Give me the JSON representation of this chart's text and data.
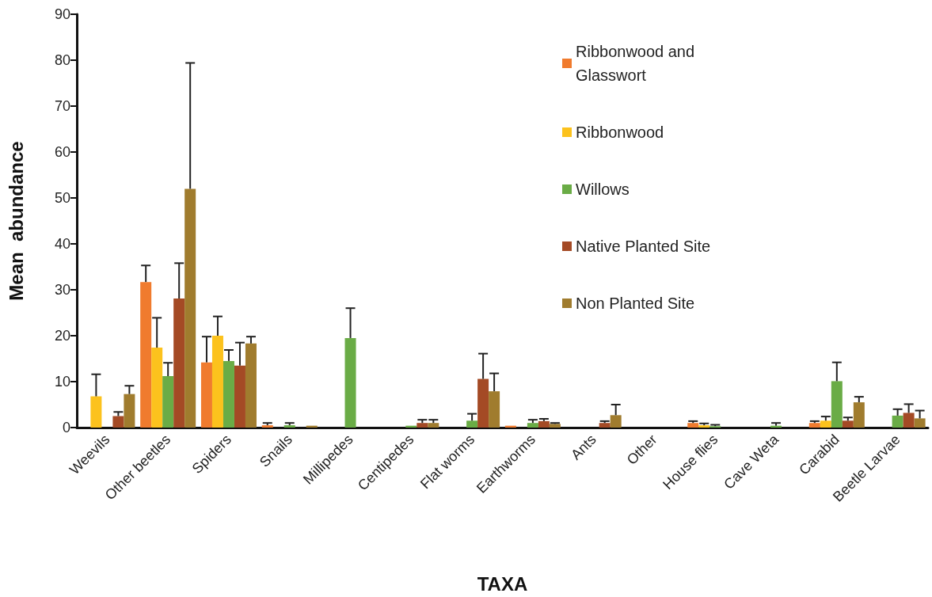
{
  "chart_data": {
    "type": "bar",
    "xlabel": "TAXA",
    "ylabel": "Mean  abundance",
    "categories": [
      "Weevils",
      "Other beetles",
      "Spiders",
      "Snails",
      "Millipedes",
      "Centipedes",
      "Flat worms",
      "Earthworms",
      "Ants",
      "Other",
      "House flies",
      "Cave Weta",
      "Carabid",
      "Beetle Larvae"
    ],
    "series": [
      {
        "name": "Ribbonwood and Glasswort",
        "color": "#f07b2e",
        "values": [
          0,
          31.7,
          14.2,
          0.5,
          0,
          0,
          0,
          0.4,
          0,
          0,
          1.0,
          0,
          1.0,
          0
        ],
        "errors": [
          null,
          [
            31.7,
            35.3
          ],
          [
            14.2,
            19.8
          ],
          [
            0.5,
            1.0
          ],
          null,
          null,
          null,
          null,
          null,
          null,
          [
            1.0,
            1.4
          ],
          null,
          [
            1.0,
            1.4
          ],
          null
        ]
      },
      {
        "name": "Ribbonwood",
        "color": "#fcc21d",
        "values": [
          6.8,
          17.4,
          20.0,
          0,
          0,
          0,
          0,
          0,
          0,
          0,
          0.5,
          0,
          1.5,
          0
        ],
        "errors": [
          [
            6.8,
            11.6
          ],
          [
            17.4,
            23.9
          ],
          [
            20.0,
            24.2
          ],
          null,
          null,
          null,
          null,
          null,
          null,
          null,
          [
            0.5,
            0.9
          ],
          null,
          [
            1.5,
            2.4
          ],
          null
        ]
      },
      {
        "name": "Willows",
        "color": "#6aac46",
        "values": [
          0,
          11.2,
          14.5,
          0.5,
          19.5,
          0.4,
          1.5,
          1.0,
          0,
          0,
          0.3,
          0.4,
          10.1,
          2.6
        ],
        "errors": [
          null,
          [
            11.2,
            14.1
          ],
          [
            14.5,
            16.9
          ],
          [
            0.5,
            1.0
          ],
          [
            19.5,
            26.0
          ],
          null,
          [
            1.5,
            3.0
          ],
          [
            1.0,
            1.7
          ],
          null,
          null,
          [
            0.3,
            0.6
          ],
          [
            0.4,
            1.0
          ],
          [
            10.1,
            14.2
          ],
          [
            2.6,
            4.0
          ]
        ]
      },
      {
        "name": "Native Planted Site",
        "color": "#a44a25",
        "values": [
          2.5,
          28.1,
          13.5,
          0,
          0,
          1.0,
          10.6,
          1.4,
          1.0,
          0,
          0,
          0,
          1.5,
          3.2
        ],
        "errors": [
          [
            2.5,
            3.4
          ],
          [
            28.1,
            35.8
          ],
          [
            13.5,
            18.5
          ],
          null,
          null,
          [
            1.0,
            1.7
          ],
          [
            10.6,
            16.1
          ],
          [
            1.4,
            1.9
          ],
          [
            1.0,
            1.4
          ],
          null,
          null,
          null,
          [
            1.5,
            2.2
          ],
          [
            3.2,
            5.1
          ]
        ]
      },
      {
        "name": "Non Planted Site",
        "color": "#a07c2e",
        "values": [
          7.3,
          52.0,
          18.3,
          0.4,
          0,
          1.0,
          7.9,
          0.8,
          2.7,
          0,
          0,
          0,
          5.5,
          2.0
        ],
        "errors": [
          [
            7.3,
            9.1
          ],
          [
            52.0,
            79.4
          ],
          [
            18.3,
            19.8
          ],
          null,
          null,
          [
            1.0,
            1.7
          ],
          [
            7.9,
            11.8
          ],
          [
            0.8,
            1.0
          ],
          [
            2.7,
            5.0
          ],
          null,
          null,
          null,
          [
            5.5,
            6.7
          ],
          [
            2.0,
            3.7
          ]
        ]
      }
    ],
    "ylim": [
      0,
      90
    ],
    "yticks": [
      0,
      10,
      20,
      30,
      40,
      50,
      60,
      70,
      80,
      90
    ],
    "grid": false,
    "legend": "top right"
  }
}
